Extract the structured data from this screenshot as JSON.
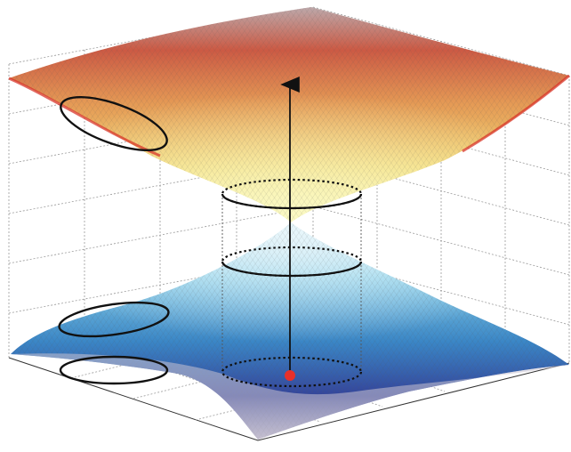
{
  "figure": {
    "kind": "3d-surface-diagram",
    "upper_surface_gradient": [
      "#f6f6a8",
      "#f3d86a",
      "#e08a4a",
      "#c94a3a",
      "#b8a3a8"
    ],
    "lower_surface_gradient": [
      "#d8eef6",
      "#7ccbe8",
      "#2f7fc4",
      "#2f3f95",
      "#b9b3c6"
    ],
    "marker_color": "#e8302a",
    "curve_color": "#111111",
    "grid_color": "#9a9a9a",
    "mesh_color": "#6a6a6a"
  }
}
